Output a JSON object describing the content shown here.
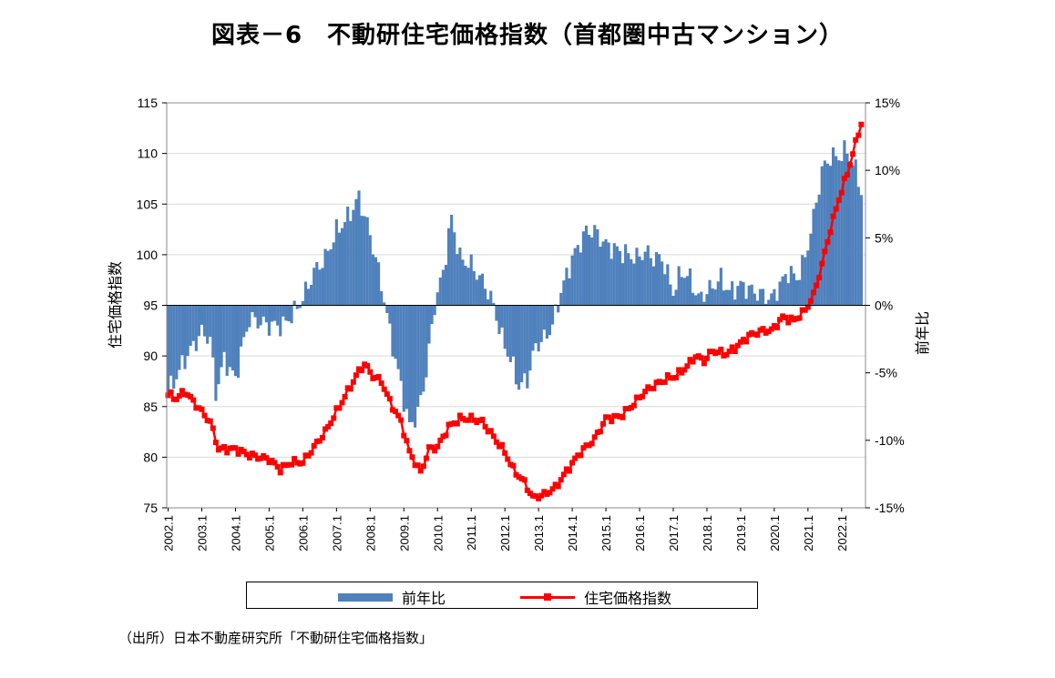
{
  "title": "図表－6　不動研住宅価格指数（首都圏中古マンション）",
  "source": "（出所）日本不動産研究所「不動研住宅価格指数」",
  "chart_data": {
    "type": "bar+line",
    "x_tick_labels": [
      "2002.1",
      "2003.1",
      "2004.1",
      "2005.1",
      "2006.1",
      "2007.1",
      "2008.1",
      "2009.1",
      "2010.1",
      "2011.1",
      "2012.1",
      "2013.1",
      "2014.1",
      "2015.1",
      "2016.1",
      "2017.1",
      "2018.1",
      "2019.1",
      "2020.1",
      "2021.1",
      "2022.1"
    ],
    "y_left": {
      "label": "住宅価格指数",
      "ticks": [
        115,
        110,
        105,
        100,
        95,
        90,
        85,
        80,
        75
      ],
      "range": [
        75,
        115
      ]
    },
    "y_right": {
      "label": "前年比",
      "ticks": [
        "15%",
        "10%",
        "5%",
        "0%",
        "-5%",
        "-10%",
        "-15%"
      ],
      "range": [
        -15,
        15
      ]
    },
    "legend": [
      "前年比",
      "住宅価格指数"
    ],
    "colors": {
      "bar": "#4f81bd",
      "line": "#ff0000"
    },
    "series": [
      {
        "name": "前年比",
        "type": "bar",
        "axis": "right",
        "key_points": [
          [
            "2002-01",
            -6.5
          ],
          [
            "2002-07",
            -4.0
          ],
          [
            "2003-01",
            -2.0
          ],
          [
            "2003-04",
            -2.5
          ],
          [
            "2003-06",
            -6.5
          ],
          [
            "2003-09",
            -4.0
          ],
          [
            "2004-01",
            -5.5
          ],
          [
            "2004-03",
            -3.5
          ],
          [
            "2004-06",
            -1.0
          ],
          [
            "2005-01",
            -1.5
          ],
          [
            "2005-06",
            -1.5
          ],
          [
            "2005-10",
            -0.5
          ],
          [
            "2006-01",
            0.5
          ],
          [
            "2006-05",
            2.5
          ],
          [
            "2006-09",
            3.5
          ],
          [
            "2007-01",
            5.5
          ],
          [
            "2007-05",
            6.5
          ],
          [
            "2007-09",
            8.0
          ],
          [
            "2007-12",
            6.0
          ],
          [
            "2008-03",
            3.5
          ],
          [
            "2008-06",
            0.5
          ],
          [
            "2008-08",
            -2.0
          ],
          [
            "2008-12",
            -6.0
          ],
          [
            "2009-03",
            -9.0
          ],
          [
            "2009-06",
            -8.0
          ],
          [
            "2009-09",
            -5.0
          ],
          [
            "2009-12",
            0.0
          ],
          [
            "2010-03",
            2.5
          ],
          [
            "2010-06",
            6.5
          ],
          [
            "2010-09",
            3.5
          ],
          [
            "2011-01",
            3.0
          ],
          [
            "2011-06",
            1.5
          ],
          [
            "2011-09",
            0.0
          ],
          [
            "2011-12",
            -2.5
          ],
          [
            "2012-03",
            -4.0
          ],
          [
            "2012-06",
            -6.0
          ],
          [
            "2012-09",
            -5.5
          ],
          [
            "2012-12",
            -3.0
          ],
          [
            "2013-03",
            -2.5
          ],
          [
            "2013-06",
            -1.5
          ],
          [
            "2013-09",
            1.0
          ],
          [
            "2014-01",
            3.5
          ],
          [
            "2014-06",
            5.5
          ],
          [
            "2014-09",
            5.5
          ],
          [
            "2015-01",
            4.5
          ],
          [
            "2015-06",
            4.0
          ],
          [
            "2015-12",
            3.5
          ],
          [
            "2016-03",
            4.0
          ],
          [
            "2016-06",
            3.5
          ],
          [
            "2016-09",
            3.5
          ],
          [
            "2017-01",
            1.0
          ],
          [
            "2017-04",
            2.5
          ],
          [
            "2017-07",
            2.0
          ],
          [
            "2017-10",
            0.5
          ],
          [
            "2018-01",
            1.0
          ],
          [
            "2018-06",
            2.0
          ],
          [
            "2018-09",
            1.0
          ],
          [
            "2019-01",
            1.5
          ],
          [
            "2019-06",
            1.0
          ],
          [
            "2019-12",
            0.5
          ],
          [
            "2020-03",
            1.5
          ],
          [
            "2020-06",
            2.5
          ],
          [
            "2020-09",
            2.0
          ],
          [
            "2020-12",
            3.5
          ],
          [
            "2021-03",
            6.5
          ],
          [
            "2021-06",
            10.0
          ],
          [
            "2021-09",
            11.0
          ],
          [
            "2021-12",
            11.0
          ],
          [
            "2022-03",
            11.5
          ],
          [
            "2022-06",
            10.0
          ],
          [
            "2022-08",
            8.5
          ]
        ]
      },
      {
        "name": "住宅価格指数",
        "type": "line",
        "axis": "left",
        "key_points": [
          [
            "2002-01",
            86.2
          ],
          [
            "2002-04",
            85.8
          ],
          [
            "2002-07",
            86.5
          ],
          [
            "2002-10",
            85.5
          ],
          [
            "2003-01",
            84.5
          ],
          [
            "2003-04",
            83.5
          ],
          [
            "2003-07",
            80.8
          ],
          [
            "2004-01",
            80.8
          ],
          [
            "2004-06",
            80.2
          ],
          [
            "2005-01",
            79.8
          ],
          [
            "2005-05",
            78.8
          ],
          [
            "2005-09",
            79.5
          ],
          [
            "2006-01",
            79.5
          ],
          [
            "2006-05",
            81.0
          ],
          [
            "2006-09",
            82.5
          ],
          [
            "2007-01",
            84.5
          ],
          [
            "2007-05",
            86.5
          ],
          [
            "2007-09",
            88.5
          ],
          [
            "2007-11",
            89.2
          ],
          [
            "2008-02",
            88.0
          ],
          [
            "2008-05",
            87.5
          ],
          [
            "2008-08",
            85.5
          ],
          [
            "2008-12",
            83.5
          ],
          [
            "2009-03",
            80.5
          ],
          [
            "2009-05",
            79.5
          ],
          [
            "2009-07",
            78.5
          ],
          [
            "2009-10",
            80.8
          ],
          [
            "2010-01",
            81.0
          ],
          [
            "2010-05",
            83.0
          ],
          [
            "2010-09",
            83.8
          ],
          [
            "2011-01",
            83.8
          ],
          [
            "2011-05",
            83.5
          ],
          [
            "2011-09",
            82.0
          ],
          [
            "2012-01",
            80.5
          ],
          [
            "2012-04",
            78.8
          ],
          [
            "2012-08",
            77.5
          ],
          [
            "2012-11",
            76.0
          ],
          [
            "2013-03",
            76.3
          ],
          [
            "2013-07",
            77.0
          ],
          [
            "2013-12",
            79.0
          ],
          [
            "2014-04",
            80.5
          ],
          [
            "2014-09",
            81.8
          ],
          [
            "2015-01",
            83.8
          ],
          [
            "2015-06",
            84.0
          ],
          [
            "2015-10",
            85.0
          ],
          [
            "2016-03",
            86.5
          ],
          [
            "2016-07",
            87.2
          ],
          [
            "2016-11",
            87.8
          ],
          [
            "2017-02",
            88.0
          ],
          [
            "2017-06",
            89.0
          ],
          [
            "2017-09",
            90.0
          ],
          [
            "2017-12",
            89.5
          ],
          [
            "2018-03",
            90.5
          ],
          [
            "2018-08",
            90.2
          ],
          [
            "2018-12",
            91.0
          ],
          [
            "2019-04",
            92.0
          ],
          [
            "2019-09",
            92.5
          ],
          [
            "2019-12",
            92.5
          ],
          [
            "2020-04",
            93.8
          ],
          [
            "2020-08",
            93.5
          ],
          [
            "2020-12",
            94.5
          ],
          [
            "2021-03",
            96.0
          ],
          [
            "2021-06",
            99.0
          ],
          [
            "2021-09",
            102.5
          ],
          [
            "2021-12",
            105.5
          ],
          [
            "2022-03",
            108.0
          ],
          [
            "2022-06",
            111.0
          ],
          [
            "2022-08",
            113.0
          ]
        ]
      }
    ]
  }
}
